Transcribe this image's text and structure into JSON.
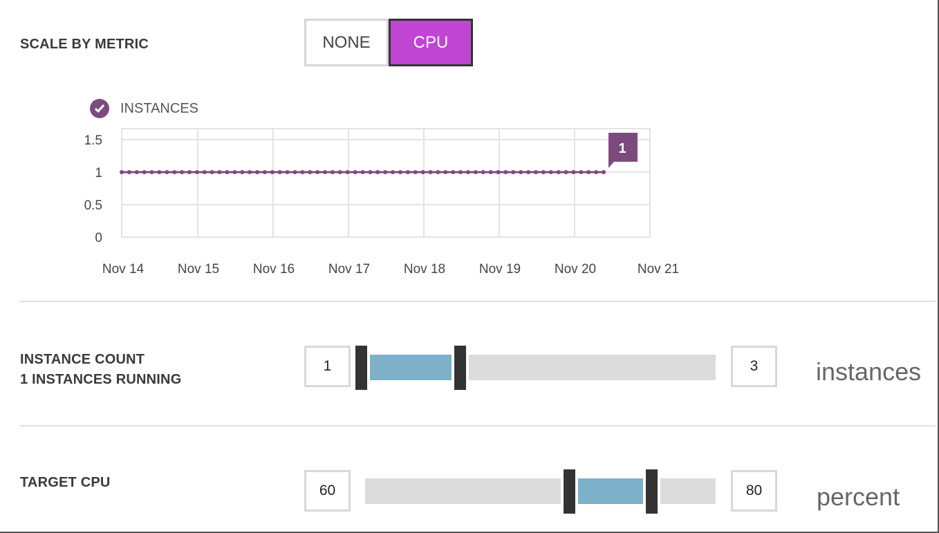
{
  "scale_by_metric": {
    "label": "SCALE BY METRIC",
    "options": [
      "NONE",
      "CPU"
    ],
    "selected": "CPU"
  },
  "chart": {
    "legend_label": "INSTANCES",
    "last_value_label": "1"
  },
  "chart_data": {
    "type": "line",
    "series": [
      {
        "name": "INSTANCES",
        "x_start": "Nov 14",
        "x_end": "Nov 20",
        "values": [
          1,
          1,
          1,
          1,
          1,
          1,
          1,
          1,
          1,
          1,
          1,
          1,
          1,
          1,
          1,
          1,
          1,
          1,
          1,
          1,
          1,
          1,
          1,
          1,
          1,
          1,
          1,
          1,
          1,
          1,
          1,
          1,
          1,
          1,
          1,
          1,
          1,
          1,
          1,
          1,
          1,
          1,
          1,
          1,
          1,
          1,
          1,
          1,
          1,
          1,
          1,
          1,
          1,
          1,
          1,
          1,
          1,
          1,
          1,
          1,
          1,
          1,
          1,
          1,
          1
        ]
      }
    ],
    "x_ticks": [
      "Nov 14",
      "Nov 15",
      "Nov 16",
      "Nov 17",
      "Nov 18",
      "Nov 19",
      "Nov 20",
      "Nov 21"
    ],
    "y_ticks": [
      "0",
      "0.5",
      "1",
      "1.5"
    ],
    "ylim": [
      0,
      1.5
    ],
    "grid": true,
    "color": "#7e4a7e"
  },
  "instance_count": {
    "label": "INSTANCE COUNT",
    "sublabel": "1 INSTANCES RUNNING",
    "min_value": "1",
    "max_value": "3",
    "unit": "instances",
    "range_start_fraction": 0.0,
    "range_end_fraction": 0.25
  },
  "target_cpu": {
    "label": "TARGET CPU",
    "min_value": "60",
    "max_value": "80",
    "unit": "percent",
    "range_start_fraction": 0.6,
    "range_end_fraction": 0.8
  },
  "colors": {
    "accent": "#c045d2",
    "series": "#7e4a7e",
    "range_fill": "#7db0c9",
    "track": "#dcdcdc",
    "handle": "#333333"
  }
}
